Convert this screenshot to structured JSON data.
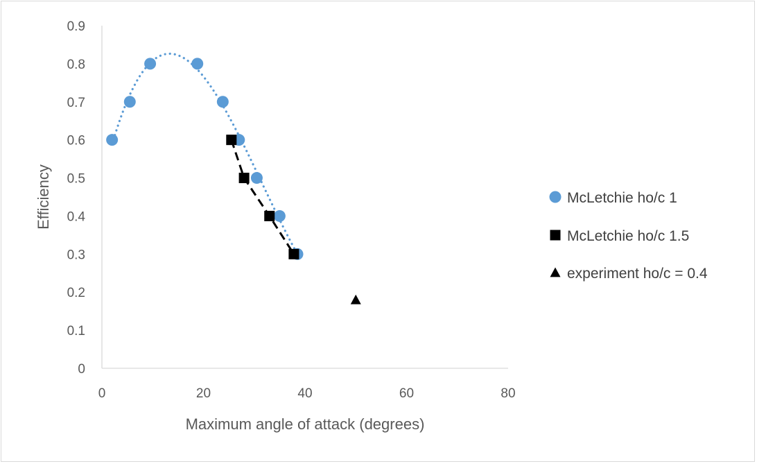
{
  "chart_data": {
    "type": "scatter",
    "title": "",
    "xlabel": "Maximum angle of attack (degrees)",
    "ylabel": "Efficiency",
    "xlim": [
      0,
      80
    ],
    "ylim": [
      0,
      0.9
    ],
    "x_ticks": [
      0,
      20,
      40,
      60,
      80
    ],
    "y_ticks": [
      0,
      0.1,
      0.2,
      0.3,
      0.4,
      0.5,
      0.6,
      0.7,
      0.8,
      0.9
    ],
    "grid": false,
    "legend_position": "right",
    "series": [
      {
        "name": "McLetchie ho/c  1",
        "marker": "circle",
        "color": "#5b9bd5",
        "trendline": "dotted",
        "x": [
          2,
          5.5,
          9.5,
          18.8,
          23.8,
          27,
          30.5,
          35,
          38.5
        ],
        "y": [
          0.6,
          0.7,
          0.8,
          0.8,
          0.7,
          0.6,
          0.5,
          0.4,
          0.3
        ]
      },
      {
        "name": "McLetchie ho/c  1.5",
        "marker": "square",
        "color": "#000000",
        "trendline": "dashed",
        "x": [
          25.5,
          28,
          33,
          37.8
        ],
        "y": [
          0.6,
          0.5,
          0.4,
          0.3
        ]
      },
      {
        "name": "experiment ho/c = 0.4",
        "marker": "triangle",
        "color": "#000000",
        "x": [
          50
        ],
        "y": [
          0.18
        ]
      }
    ]
  }
}
